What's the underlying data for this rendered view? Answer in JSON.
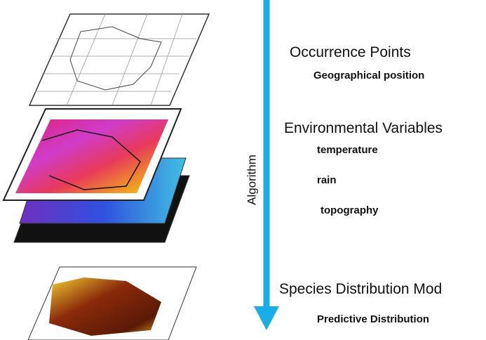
{
  "algorithm_label": "Algorithm",
  "sections": [
    {
      "title": "Occurrence Points",
      "items": [
        "Geographical position"
      ]
    },
    {
      "title": "Environmental Variables",
      "items": [
        "temperature",
        "rain",
        "topography"
      ]
    },
    {
      "title": "Species Distribution Mod",
      "items": [
        "Predictive Distribution"
      ]
    }
  ]
}
